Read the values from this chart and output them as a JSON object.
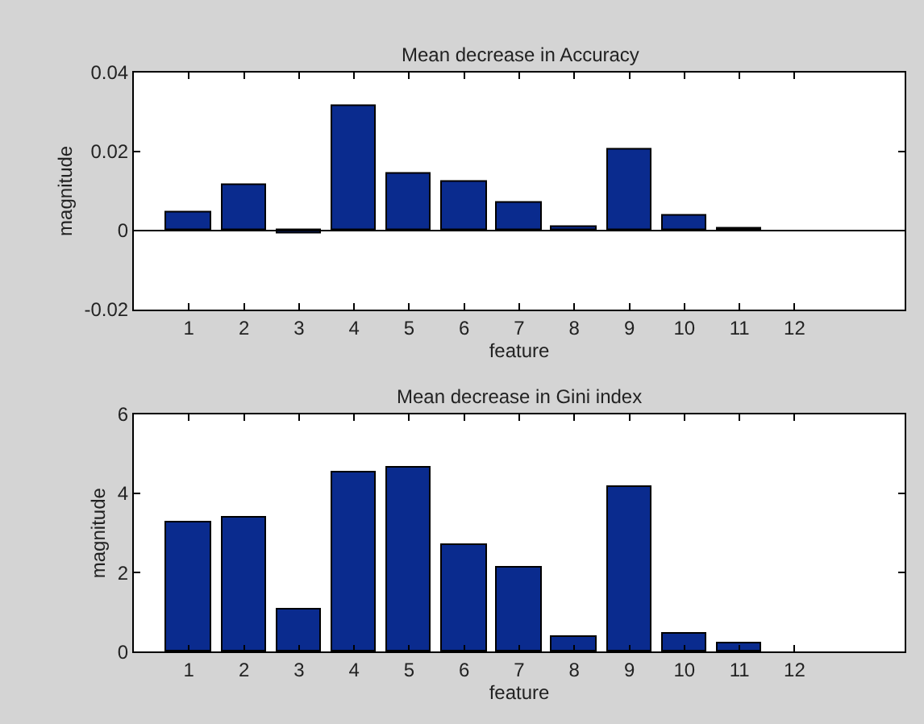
{
  "chart_data": [
    {
      "type": "bar",
      "title": "Mean decrease in Accuracy",
      "xlabel": "feature",
      "ylabel": "magnitude",
      "x": [
        1,
        2,
        3,
        4,
        5,
        6,
        7,
        8,
        9,
        10,
        11
      ],
      "series": [
        {
          "color": "#0a2b8e",
          "values": [
            0.0047,
            0.0116,
            -0.0007,
            0.0316,
            0.0143,
            0.0123,
            0.0072,
            0.0007,
            0.0204,
            0.0038,
            0.0004
          ]
        }
      ],
      "xlim": [
        0,
        14
      ],
      "xticks": [
        1,
        2,
        3,
        4,
        5,
        6,
        7,
        8,
        9,
        10,
        11,
        12
      ],
      "ylim": [
        -0.02,
        0.04
      ],
      "yticks": [
        {
          "value": -0.02,
          "label": "-0.02"
        },
        0,
        0.02,
        0.04
      ],
      "ref_lines": [
        {
          "axis": "y",
          "value": 0,
          "color": "#000000"
        }
      ]
    },
    {
      "type": "bar",
      "title": "Mean decrease in Gini index",
      "xlabel": "feature",
      "ylabel": "magnitude",
      "x": [
        1,
        2,
        3,
        4,
        5,
        6,
        7,
        8,
        9,
        10,
        11
      ],
      "series": [
        {
          "color": "#0a2b8e",
          "values": [
            3.26,
            3.41,
            1.06,
            4.52,
            4.64,
            2.71,
            2.14,
            0.38,
            4.17,
            0.45,
            0.2
          ]
        }
      ],
      "xlim": [
        0,
        14
      ],
      "xticks": [
        1,
        2,
        3,
        4,
        5,
        6,
        7,
        8,
        9,
        10,
        11,
        12
      ],
      "ylim": [
        0,
        6
      ],
      "yticks": [
        0,
        2,
        4,
        6
      ]
    }
  ]
}
